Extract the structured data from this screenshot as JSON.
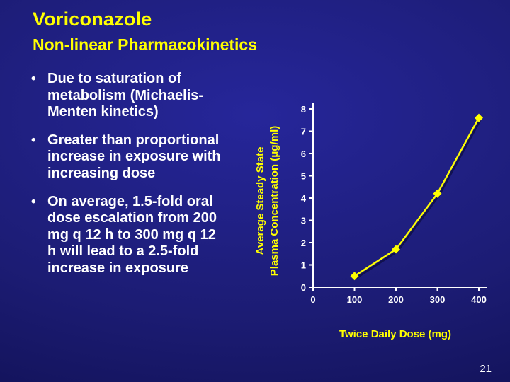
{
  "slide": {
    "title": "Voriconazole",
    "subtitle": "Non-linear Pharmacokinetics",
    "page_number": "21",
    "bullets": [
      "Due to saturation of metabolism (Michaelis-Menten kinetics)",
      "Greater than proportional increase in exposure with increasing dose",
      "On average, 1.5-fold oral dose escalation from 200 mg q 12 h to 300 mg q 12 h will lead to a 2.5-fold increase in exposure"
    ],
    "colors": {
      "background": "#1c1c74",
      "accent_yellow": "#ffff00",
      "text_white": "#ffffff",
      "divider": "#9b9b22"
    }
  },
  "chart_data": {
    "type": "line",
    "series_name": "Average steady state plasma concentration",
    "x": [
      100,
      200,
      300,
      400
    ],
    "values": [
      0.5,
      1.7,
      4.2,
      7.6
    ],
    "title": "",
    "xlabel": "Twice Daily Dose (mg)",
    "ylabel_line1": "Average Steady State",
    "ylabel_line2": "Plasma Concentration (μg/ml)",
    "xlim": [
      0,
      400
    ],
    "ylim": [
      0,
      8
    ],
    "x_ticks": [
      0,
      100,
      200,
      300,
      400
    ],
    "y_ticks": [
      0,
      1,
      2,
      3,
      4,
      5,
      6,
      7,
      8
    ],
    "marker": "diamond",
    "line_color": "#ffff00",
    "axis_color": "#ffffff",
    "grid": false,
    "legend": false
  }
}
